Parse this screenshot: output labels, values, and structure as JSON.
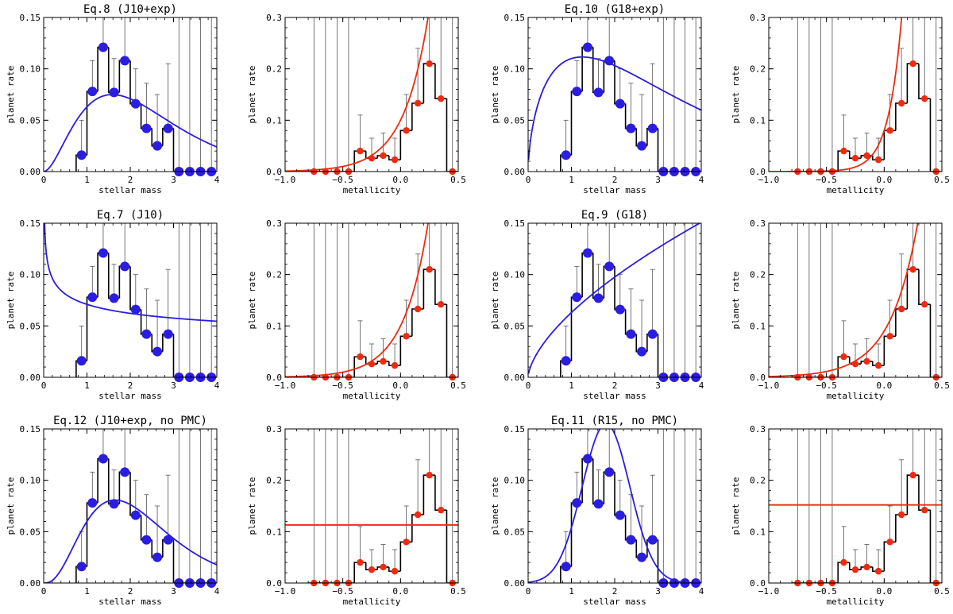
{
  "chart_data": [
    {
      "type": "mass",
      "title": "Eq.8 (J10+exp)",
      "xlabel": "stellar mass",
      "ylabel": "planet rate",
      "xlim": [
        0,
        4
      ],
      "ylim": [
        0,
        0.15
      ],
      "xticks": [
        "0",
        "1",
        "2",
        "3",
        "4"
      ],
      "yticks": [
        "0.00",
        "0.05",
        "0.10",
        "0.15"
      ],
      "model": "j10exp",
      "model_params": {
        "A": 0.063,
        "alpha": 1.9,
        "beta": 1.2
      },
      "line_color": "#2b1de0",
      "bin_edges": [
        0.75,
        1.0,
        1.25,
        1.5,
        1.75,
        2.0,
        2.25,
        2.5,
        2.75,
        3.0,
        3.25,
        3.5,
        3.75,
        4.0
      ],
      "rates": [
        0.016,
        0.078,
        0.121,
        0.077,
        0.108,
        0.066,
        0.042,
        0.025,
        0.042,
        0,
        0,
        0,
        0
      ],
      "err_top": [
        0.05,
        0.108,
        0.15,
        0.11,
        0.15,
        0.1,
        0.086,
        0.075,
        0.105,
        0.15,
        0.15,
        0.15,
        0.15
      ]
    },
    {
      "type": "metal",
      "title": "",
      "xlabel": "metallicity",
      "ylabel": "planet rate",
      "xlim": [
        -1,
        0.5
      ],
      "ylim": [
        0,
        0.3
      ],
      "xticks": [
        "−1.0",
        "−0.5",
        "0.0",
        "0.5"
      ],
      "yticks": [
        "0.0",
        "0.1",
        "0.2",
        "0.3"
      ],
      "model": "exp",
      "model_params": {
        "A": 0.1,
        "b": 2.0
      },
      "line_color": "#ee2b10",
      "bin_edges": [
        -0.8,
        -0.7,
        -0.6,
        -0.5,
        -0.4,
        -0.3,
        -0.2,
        -0.1,
        0.0,
        0.1,
        0.2,
        0.3,
        0.4,
        0.5
      ],
      "rates": [
        0,
        0,
        0,
        0,
        0.04,
        0.026,
        0.031,
        0.023,
        0.08,
        0.133,
        0.21,
        0.142,
        0
      ],
      "err_top": [
        0.3,
        0.3,
        0.3,
        0.3,
        0.11,
        0.065,
        0.075,
        0.065,
        0.15,
        0.24,
        0.3,
        0.3,
        0.3
      ]
    },
    {
      "type": "mass",
      "title": "Eq.10 (G18+exp)",
      "xlabel": "stellar mass",
      "ylabel": "planet rate",
      "xlim": [
        0,
        4
      ],
      "ylim": [
        0,
        0.15
      ],
      "xticks": [
        "0",
        "1",
        "2",
        "3",
        "4"
      ],
      "yticks": [
        "0.00",
        "0.05",
        "0.10",
        "0.15"
      ],
      "model": "g18exp",
      "model_params": {
        "A": 0.11,
        "alpha": 0.6,
        "beta": 0.48
      },
      "line_color": "#2b1de0",
      "bin_edges": [
        0.75,
        1.0,
        1.25,
        1.5,
        1.75,
        2.0,
        2.25,
        2.5,
        2.75,
        3.0,
        3.25,
        3.5,
        3.75,
        4.0
      ],
      "rates": [
        0.016,
        0.078,
        0.121,
        0.077,
        0.108,
        0.066,
        0.042,
        0.025,
        0.042,
        0,
        0,
        0,
        0
      ],
      "err_top": [
        0.05,
        0.108,
        0.15,
        0.11,
        0.15,
        0.1,
        0.086,
        0.075,
        0.105,
        0.15,
        0.15,
        0.15,
        0.15
      ]
    },
    {
      "type": "metal",
      "title": "",
      "xlabel": "metallicity",
      "ylabel": "planet rate",
      "xlim": [
        -1,
        0.5
      ],
      "ylim": [
        0,
        0.3
      ],
      "xticks": [
        "−1.0",
        "−0.5",
        "0.0",
        "0.5"
      ],
      "yticks": [
        "0.0",
        "0.1",
        "0.2",
        "0.3"
      ],
      "model": "exp",
      "model_params": {
        "A": 0.08,
        "b": 3.8
      },
      "line_color": "#ee2b10",
      "bin_edges": [
        -0.8,
        -0.7,
        -0.6,
        -0.5,
        -0.4,
        -0.3,
        -0.2,
        -0.1,
        0.0,
        0.1,
        0.2,
        0.3,
        0.4,
        0.5
      ],
      "rates": [
        0,
        0,
        0,
        0,
        0.04,
        0.026,
        0.031,
        0.023,
        0.08,
        0.133,
        0.21,
        0.142,
        0
      ],
      "err_top": [
        0.3,
        0.3,
        0.3,
        0.3,
        0.11,
        0.065,
        0.075,
        0.065,
        0.15,
        0.24,
        0.3,
        0.3,
        0.3
      ]
    },
    {
      "type": "mass",
      "title": "Eq.7 (J10)",
      "xlabel": "stellar mass",
      "ylabel": "planet rate",
      "xlim": [
        0,
        4
      ],
      "ylim": [
        0,
        0.15
      ],
      "xticks": [
        "0",
        "1",
        "2",
        "3",
        "4"
      ],
      "yticks": [
        "0.00",
        "0.05",
        "0.10",
        "0.15"
      ],
      "model": "power",
      "model_params": {
        "A": 0.071,
        "alpha": -0.19
      },
      "line_color": "#2b1de0",
      "bin_edges": [
        0.75,
        1.0,
        1.25,
        1.5,
        1.75,
        2.0,
        2.25,
        2.5,
        2.75,
        3.0,
        3.25,
        3.5,
        3.75,
        4.0
      ],
      "rates": [
        0.016,
        0.078,
        0.121,
        0.077,
        0.108,
        0.066,
        0.042,
        0.025,
        0.042,
        0,
        0,
        0,
        0
      ],
      "err_top": [
        0.05,
        0.108,
        0.15,
        0.11,
        0.15,
        0.1,
        0.086,
        0.075,
        0.105,
        0.15,
        0.15,
        0.15,
        0.15
      ]
    },
    {
      "type": "metal",
      "title": "",
      "xlabel": "metallicity",
      "ylabel": "planet rate",
      "xlim": [
        -1,
        0.5
      ],
      "ylim": [
        0,
        0.3
      ],
      "xticks": [
        "−1.0",
        "−0.5",
        "0.0",
        "0.5"
      ],
      "yticks": [
        "0.0",
        "0.1",
        "0.2",
        "0.3"
      ],
      "model": "exp",
      "model_params": {
        "A": 0.1,
        "b": 2.0
      },
      "line_color": "#ee2b10",
      "bin_edges": [
        -0.8,
        -0.7,
        -0.6,
        -0.5,
        -0.4,
        -0.3,
        -0.2,
        -0.1,
        0.0,
        0.1,
        0.2,
        0.3,
        0.4,
        0.5
      ],
      "rates": [
        0,
        0,
        0,
        0,
        0.04,
        0.026,
        0.031,
        0.023,
        0.08,
        0.133,
        0.21,
        0.142,
        0
      ],
      "err_top": [
        0.3,
        0.3,
        0.3,
        0.3,
        0.11,
        0.065,
        0.075,
        0.065,
        0.15,
        0.24,
        0.3,
        0.3,
        0.3
      ]
    },
    {
      "type": "mass",
      "title": "Eq.9 (G18)",
      "xlabel": "stellar mass",
      "ylabel": "planet rate",
      "xlim": [
        0,
        4
      ],
      "ylim": [
        0,
        0.15
      ],
      "xticks": [
        "0",
        "1",
        "2",
        "3",
        "4"
      ],
      "yticks": [
        "0.00",
        "0.05",
        "0.10",
        "0.15"
      ],
      "model": "power",
      "model_params": {
        "A": 0.063,
        "alpha": 0.63
      },
      "line_color": "#2b1de0",
      "bin_edges": [
        0.75,
        1.0,
        1.25,
        1.5,
        1.75,
        2.0,
        2.25,
        2.5,
        2.75,
        3.0,
        3.25,
        3.5,
        3.75,
        4.0
      ],
      "rates": [
        0.016,
        0.078,
        0.121,
        0.077,
        0.108,
        0.066,
        0.042,
        0.025,
        0.042,
        0,
        0,
        0,
        0
      ],
      "err_top": [
        0.05,
        0.108,
        0.15,
        0.11,
        0.15,
        0.1,
        0.086,
        0.075,
        0.105,
        0.15,
        0.15,
        0.15,
        0.15
      ]
    },
    {
      "type": "metal",
      "title": "",
      "xlabel": "metallicity",
      "ylabel": "planet rate",
      "xlim": [
        -1,
        0.5
      ],
      "ylim": [
        0,
        0.3
      ],
      "xticks": [
        "−1.0",
        "−0.5",
        "0.0",
        "0.5"
      ],
      "yticks": [
        "0.0",
        "0.1",
        "0.2",
        "0.3"
      ],
      "model": "exp",
      "model_params": {
        "A": 0.09,
        "b": 1.8
      },
      "line_color": "#ee2b10",
      "bin_edges": [
        -0.8,
        -0.7,
        -0.6,
        -0.5,
        -0.4,
        -0.3,
        -0.2,
        -0.1,
        0.0,
        0.1,
        0.2,
        0.3,
        0.4,
        0.5
      ],
      "rates": [
        0,
        0,
        0,
        0,
        0.04,
        0.026,
        0.031,
        0.023,
        0.08,
        0.133,
        0.21,
        0.142,
        0
      ],
      "err_top": [
        0.3,
        0.3,
        0.3,
        0.3,
        0.11,
        0.065,
        0.075,
        0.065,
        0.15,
        0.24,
        0.3,
        0.3,
        0.3
      ]
    },
    {
      "type": "mass",
      "title": "Eq.12 (J10+exp, no PMC)",
      "xlabel": "stellar mass",
      "ylabel": "planet rate",
      "xlim": [
        0,
        4
      ],
      "ylim": [
        0,
        0.15
      ],
      "xticks": [
        "0",
        "1",
        "2",
        "3",
        "4"
      ],
      "yticks": [
        "0.00",
        "0.05",
        "0.10",
        "0.15"
      ],
      "model": "j10exp",
      "model_params": {
        "A": 0.06,
        "alpha": 2.8,
        "beta": 1.7
      },
      "line_color": "#2b1de0",
      "bin_edges": [
        0.75,
        1.0,
        1.25,
        1.5,
        1.75,
        2.0,
        2.25,
        2.5,
        2.75,
        3.0,
        3.25,
        3.5,
        3.75,
        4.0
      ],
      "rates": [
        0.016,
        0.078,
        0.121,
        0.077,
        0.108,
        0.066,
        0.042,
        0.025,
        0.042,
        0,
        0,
        0,
        0
      ],
      "err_top": [
        0.05,
        0.108,
        0.15,
        0.11,
        0.15,
        0.1,
        0.086,
        0.075,
        0.105,
        0.15,
        0.15,
        0.15,
        0.15
      ]
    },
    {
      "type": "metal",
      "title": "",
      "xlabel": "metallicity",
      "ylabel": "planet rate",
      "xlim": [
        -1,
        0.5
      ],
      "ylim": [
        0,
        0.3
      ],
      "xticks": [
        "−1.0",
        "−0.5",
        "0.0",
        "0.5"
      ],
      "yticks": [
        "0.0",
        "0.1",
        "0.2",
        "0.3"
      ],
      "model": "const",
      "model_params": {
        "A": 0.113
      },
      "line_color": "#ee2b10",
      "bin_edges": [
        -0.8,
        -0.7,
        -0.6,
        -0.5,
        -0.4,
        -0.3,
        -0.2,
        -0.1,
        0.0,
        0.1,
        0.2,
        0.3,
        0.4,
        0.5
      ],
      "rates": [
        0,
        0,
        0,
        0,
        0.04,
        0.026,
        0.031,
        0.023,
        0.08,
        0.133,
        0.21,
        0.142,
        0
      ],
      "err_top": [
        0.3,
        0.3,
        0.3,
        0.3,
        0.11,
        0.065,
        0.075,
        0.065,
        0.15,
        0.24,
        0.3,
        0.3,
        0.3
      ]
    },
    {
      "type": "mass",
      "title": "Eq.11 (R15, no PMC)",
      "xlabel": "stellar mass",
      "ylabel": "planet rate",
      "xlim": [
        0,
        4
      ],
      "ylim": [
        0,
        0.15
      ],
      "xticks": [
        "0",
        "1",
        "2",
        "3",
        "4"
      ],
      "yticks": [
        "0.00",
        "0.05",
        "0.10",
        "0.15"
      ],
      "model": "gauss",
      "model_params": {
        "A": 0.155,
        "mu": 1.8,
        "sigma": 0.55
      },
      "line_color": "#2b1de0",
      "bin_edges": [
        0.75,
        1.0,
        1.25,
        1.5,
        1.75,
        2.0,
        2.25,
        2.5,
        2.75,
        3.0,
        3.25,
        3.5,
        3.75,
        4.0
      ],
      "rates": [
        0.016,
        0.078,
        0.121,
        0.077,
        0.108,
        0.066,
        0.042,
        0.025,
        0.042,
        0,
        0,
        0,
        0
      ],
      "err_top": [
        0.05,
        0.108,
        0.15,
        0.11,
        0.15,
        0.1,
        0.086,
        0.075,
        0.105,
        0.15,
        0.15,
        0.15,
        0.15
      ]
    },
    {
      "type": "metal",
      "title": "",
      "xlabel": "metallicity",
      "ylabel": "planet rate",
      "xlim": [
        -1,
        0.5
      ],
      "ylim": [
        0,
        0.3
      ],
      "xticks": [
        "−1.0",
        "−0.5",
        "0.0",
        "0.5"
      ],
      "yticks": [
        "0.0",
        "0.1",
        "0.2",
        "0.3"
      ],
      "model": "const",
      "model_params": {
        "A": 0.152
      },
      "line_color": "#ee2b10",
      "bin_edges": [
        -0.8,
        -0.7,
        -0.6,
        -0.5,
        -0.4,
        -0.3,
        -0.2,
        -0.1,
        0.0,
        0.1,
        0.2,
        0.3,
        0.4,
        0.5
      ],
      "rates": [
        0,
        0,
        0,
        0,
        0.04,
        0.026,
        0.031,
        0.023,
        0.08,
        0.133,
        0.21,
        0.142,
        0
      ],
      "err_top": [
        0.3,
        0.3,
        0.3,
        0.3,
        0.11,
        0.065,
        0.075,
        0.065,
        0.15,
        0.24,
        0.3,
        0.3,
        0.3
      ]
    }
  ]
}
